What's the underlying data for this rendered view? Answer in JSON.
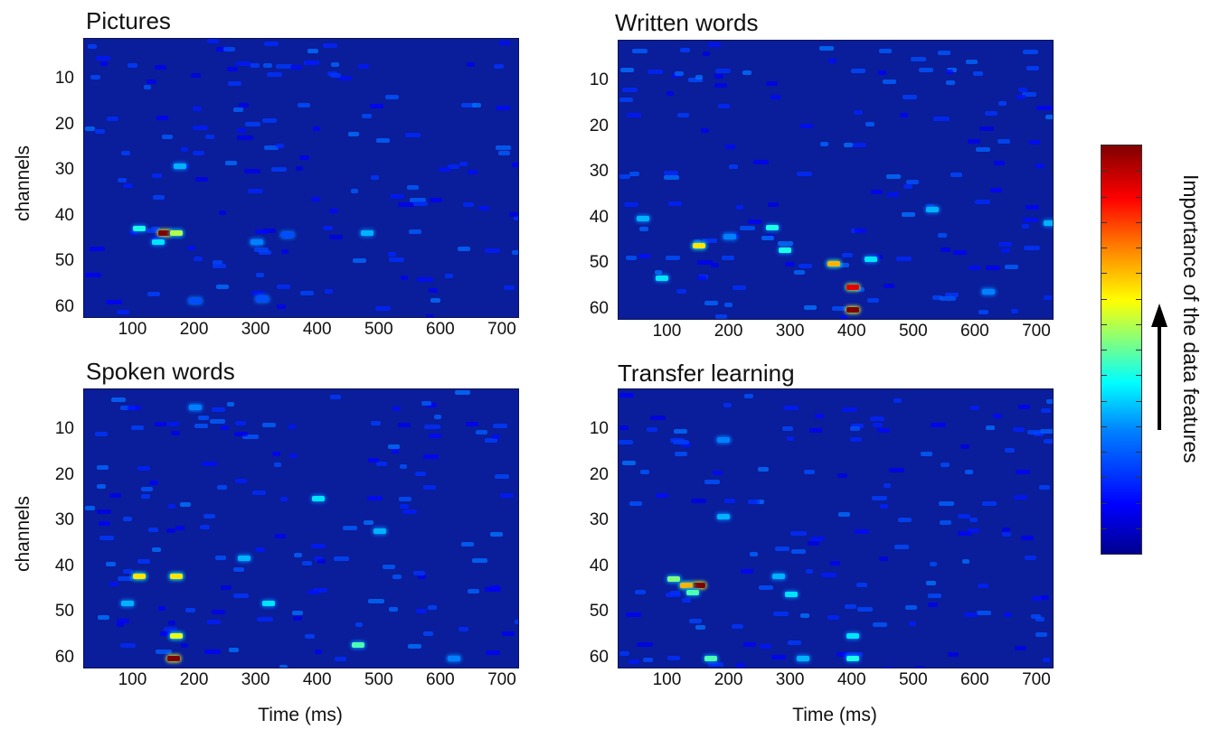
{
  "panels": [
    {
      "title": "Pictures",
      "ylabel": "channels",
      "xlabel": "",
      "yticks": [
        "10",
        "20",
        "30",
        "40",
        "50",
        "60"
      ],
      "xticks": [
        "100",
        "200",
        "300",
        "400",
        "500",
        "600",
        "700"
      ]
    },
    {
      "title": "Written words",
      "ylabel": "",
      "xlabel": "",
      "yticks": [
        "10",
        "20",
        "30",
        "40",
        "50",
        "60"
      ],
      "xticks": [
        "100",
        "200",
        "300",
        "400",
        "500",
        "600",
        "700"
      ]
    },
    {
      "title": "Spoken words",
      "ylabel": "channels",
      "xlabel": "Time (ms)",
      "yticks": [
        "10",
        "20",
        "30",
        "40",
        "50",
        "60"
      ],
      "xticks": [
        "100",
        "200",
        "300",
        "400",
        "500",
        "600",
        "700"
      ]
    },
    {
      "title": "Transfer learning",
      "ylabel": "",
      "xlabel": "Time (ms)",
      "yticks": [
        "10",
        "20",
        "30",
        "40",
        "50",
        "60"
      ],
      "xticks": [
        "100",
        "200",
        "300",
        "400",
        "500",
        "600",
        "700"
      ]
    }
  ],
  "colorbar": {
    "label": "Importance of the data features",
    "colormap": [
      "#00008f",
      "#0000ff",
      "#0080ff",
      "#00ffff",
      "#80ff80",
      "#ffff00",
      "#ff8000",
      "#ff0000",
      "#800000"
    ]
  },
  "chart_data": [
    {
      "type": "heatmap",
      "title": "Pictures",
      "xlabel": "",
      "ylabel": "channels",
      "xlim": [
        20,
        725
      ],
      "ylim": [
        62,
        1
      ],
      "hotspots": [
        {
          "x": 150,
          "y": 43.5,
          "value": 1.0
        },
        {
          "x": 170,
          "y": 43.5,
          "value": 0.55
        },
        {
          "x": 110,
          "y": 42.5,
          "value": 0.4
        },
        {
          "x": 140,
          "y": 45.5,
          "value": 0.35
        },
        {
          "x": 175,
          "y": 29,
          "value": 0.3
        },
        {
          "x": 480,
          "y": 43.5,
          "value": 0.3
        },
        {
          "x": 300,
          "y": 45.5,
          "value": 0.25
        },
        {
          "x": 350,
          "y": 44,
          "value": 0.2
        },
        {
          "x": 200,
          "y": 58.5,
          "value": 0.2
        },
        {
          "x": 310,
          "y": 58,
          "value": 0.2
        }
      ]
    },
    {
      "type": "heatmap",
      "title": "Written words",
      "xlabel": "",
      "ylabel": "",
      "xlim": [
        20,
        725
      ],
      "ylim": [
        62,
        1
      ],
      "hotspots": [
        {
          "x": 400,
          "y": 60,
          "value": 1.0
        },
        {
          "x": 400,
          "y": 55,
          "value": 0.9
        },
        {
          "x": 370,
          "y": 50,
          "value": 0.7
        },
        {
          "x": 150,
          "y": 46,
          "value": 0.65
        },
        {
          "x": 270,
          "y": 42,
          "value": 0.4
        },
        {
          "x": 290,
          "y": 47,
          "value": 0.4
        },
        {
          "x": 430,
          "y": 49,
          "value": 0.35
        },
        {
          "x": 90,
          "y": 53,
          "value": 0.35
        },
        {
          "x": 60,
          "y": 40,
          "value": 0.3
        },
        {
          "x": 530,
          "y": 38,
          "value": 0.3
        },
        {
          "x": 620,
          "y": 56,
          "value": 0.25
        },
        {
          "x": 200,
          "y": 44,
          "value": 0.25
        },
        {
          "x": 720,
          "y": 41,
          "value": 0.3
        }
      ]
    },
    {
      "type": "heatmap",
      "title": "Spoken words",
      "xlabel": "Time (ms)",
      "ylabel": "channels",
      "xlim": [
        20,
        725
      ],
      "ylim": [
        62,
        1
      ],
      "hotspots": [
        {
          "x": 165,
          "y": 60,
          "value": 1.0
        },
        {
          "x": 110,
          "y": 42,
          "value": 0.65
        },
        {
          "x": 170,
          "y": 42,
          "value": 0.65
        },
        {
          "x": 170,
          "y": 55,
          "value": 0.6
        },
        {
          "x": 465,
          "y": 57,
          "value": 0.45
        },
        {
          "x": 400,
          "y": 25,
          "value": 0.35
        },
        {
          "x": 320,
          "y": 48,
          "value": 0.35
        },
        {
          "x": 280,
          "y": 38,
          "value": 0.3
        },
        {
          "x": 90,
          "y": 48,
          "value": 0.3
        },
        {
          "x": 500,
          "y": 32,
          "value": 0.3
        },
        {
          "x": 200,
          "y": 5,
          "value": 0.25
        },
        {
          "x": 620,
          "y": 60,
          "value": 0.25
        }
      ]
    },
    {
      "type": "heatmap",
      "title": "Transfer learning",
      "xlabel": "Time (ms)",
      "ylabel": "",
      "xlim": [
        20,
        725
      ],
      "ylim": [
        62,
        1
      ],
      "hotspots": [
        {
          "x": 150,
          "y": 44,
          "value": 1.0
        },
        {
          "x": 130,
          "y": 44,
          "value": 0.7
        },
        {
          "x": 110,
          "y": 42.5,
          "value": 0.5
        },
        {
          "x": 140,
          "y": 45.5,
          "value": 0.45
        },
        {
          "x": 170,
          "y": 60,
          "value": 0.45
        },
        {
          "x": 400,
          "y": 60,
          "value": 0.4
        },
        {
          "x": 400,
          "y": 55,
          "value": 0.35
        },
        {
          "x": 300,
          "y": 46,
          "value": 0.35
        },
        {
          "x": 280,
          "y": 42,
          "value": 0.3
        },
        {
          "x": 190,
          "y": 29,
          "value": 0.3
        },
        {
          "x": 190,
          "y": 12,
          "value": 0.25
        },
        {
          "x": 320,
          "y": 60,
          "value": 0.3
        }
      ]
    }
  ]
}
